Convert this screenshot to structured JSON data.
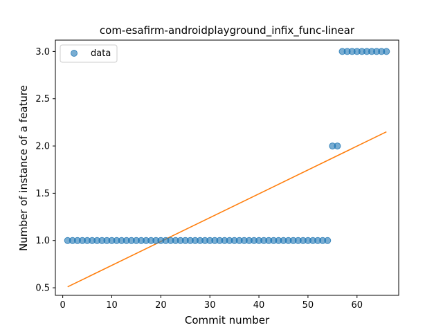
{
  "chart_data": {
    "type": "scatter",
    "title": "com-esafirm-androidplayground_infix_func-linear",
    "xlabel": "Commit number",
    "ylabel": "Number of instance of a feature",
    "xlim": [
      -1.5,
      68.5
    ],
    "ylim": [
      0.42,
      3.12
    ],
    "xticks": [
      "0",
      "10",
      "20",
      "30",
      "40",
      "50",
      "60"
    ],
    "yticks": [
      "0.5",
      "1.0",
      "1.5",
      "2.0",
      "2.5",
      "3.0"
    ],
    "grid": false,
    "legend": {
      "position": "top-left",
      "entries": [
        "data"
      ]
    },
    "series": [
      {
        "name": "data",
        "kind": "scatter",
        "color": "#1f77b4",
        "x": [
          1,
          2,
          3,
          4,
          5,
          6,
          7,
          8,
          9,
          10,
          11,
          12,
          13,
          14,
          15,
          16,
          17,
          18,
          19,
          20,
          21,
          22,
          23,
          24,
          25,
          26,
          27,
          28,
          29,
          30,
          31,
          32,
          33,
          34,
          35,
          36,
          37,
          38,
          39,
          40,
          41,
          42,
          43,
          44,
          45,
          46,
          47,
          48,
          49,
          50,
          51,
          52,
          53,
          54,
          55,
          56,
          57,
          58,
          59,
          60,
          61,
          62,
          63,
          64,
          65,
          66
        ],
        "y": [
          1,
          1,
          1,
          1,
          1,
          1,
          1,
          1,
          1,
          1,
          1,
          1,
          1,
          1,
          1,
          1,
          1,
          1,
          1,
          1,
          1,
          1,
          1,
          1,
          1,
          1,
          1,
          1,
          1,
          1,
          1,
          1,
          1,
          1,
          1,
          1,
          1,
          1,
          1,
          1,
          1,
          1,
          1,
          1,
          1,
          1,
          1,
          1,
          1,
          1,
          1,
          1,
          1,
          1,
          2,
          2,
          3,
          3,
          3,
          3,
          3,
          3,
          3,
          3,
          3,
          3
        ]
      },
      {
        "kind": "line",
        "color": "#ff7f0e",
        "x": [
          1,
          66
        ],
        "y": [
          0.51,
          2.15
        ]
      }
    ]
  }
}
